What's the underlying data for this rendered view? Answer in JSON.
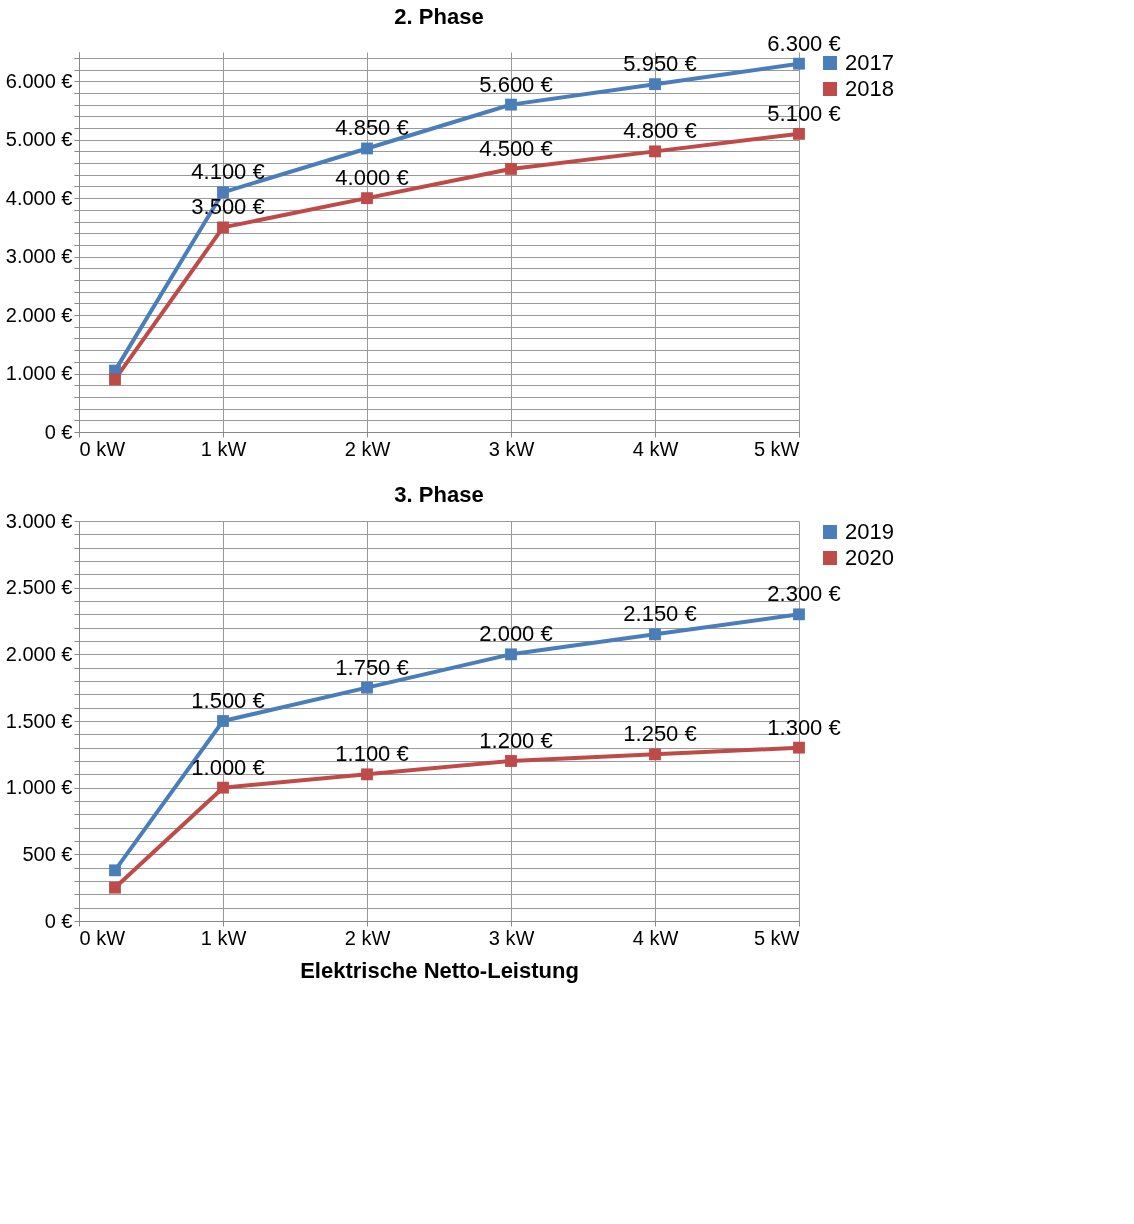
{
  "chart_data": [
    {
      "type": "line",
      "title": "2. Phase",
      "x": [
        0.25,
        1,
        2,
        3,
        4,
        5
      ],
      "series": [
        {
          "name": "2017",
          "color": "#4a7ebb",
          "values": [
            1050,
            4100,
            4850,
            5600,
            5950,
            6300
          ],
          "value_labels": [
            null,
            "4.100 €",
            "4.850 €",
            "5.600 €",
            "5.950 €",
            "6.300 €"
          ]
        },
        {
          "name": "2018",
          "color": "#be4b48",
          "values": [
            900,
            3500,
            4000,
            4500,
            4800,
            5100
          ],
          "value_labels": [
            null,
            "3.500 €",
            "4.000 €",
            "4.500 €",
            "4.800 €",
            "5.100 €"
          ]
        }
      ],
      "xlim": [
        0,
        5
      ],
      "xticks": [
        {
          "value": 0,
          "label": "0 kW"
        },
        {
          "value": 1,
          "label": "1 kW"
        },
        {
          "value": 2,
          "label": "2 kW"
        },
        {
          "value": 3,
          "label": "3 kW"
        },
        {
          "value": 4,
          "label": "4 kW"
        },
        {
          "value": 5,
          "label": "5 kW"
        }
      ],
      "ylim": [
        0,
        6500
      ],
      "yticks": [
        {
          "value": 0,
          "label": "0 €"
        },
        {
          "value": 200,
          "label": null
        },
        {
          "value": 400,
          "label": null
        },
        {
          "value": 600,
          "label": null
        },
        {
          "value": 800,
          "label": null
        },
        {
          "value": 1000,
          "label": "1.000 €"
        },
        {
          "value": 1200,
          "label": null
        },
        {
          "value": 1400,
          "label": null
        },
        {
          "value": 1600,
          "label": null
        },
        {
          "value": 1800,
          "label": null
        },
        {
          "value": 2000,
          "label": "2.000 €"
        },
        {
          "value": 2200,
          "label": null
        },
        {
          "value": 2400,
          "label": null
        },
        {
          "value": 2600,
          "label": null
        },
        {
          "value": 2800,
          "label": null
        },
        {
          "value": 3000,
          "label": "3.000 €"
        },
        {
          "value": 3200,
          "label": null
        },
        {
          "value": 3400,
          "label": null
        },
        {
          "value": 3600,
          "label": null
        },
        {
          "value": 3800,
          "label": null
        },
        {
          "value": 4000,
          "label": "4.000 €"
        },
        {
          "value": 4200,
          "label": null
        },
        {
          "value": 4400,
          "label": null
        },
        {
          "value": 4600,
          "label": null
        },
        {
          "value": 4800,
          "label": null
        },
        {
          "value": 5000,
          "label": "5.000 €"
        },
        {
          "value": 5200,
          "label": null
        },
        {
          "value": 5400,
          "label": null
        },
        {
          "value": 5600,
          "label": null
        },
        {
          "value": 5800,
          "label": null
        },
        {
          "value": 6000,
          "label": "6.000 €"
        },
        {
          "value": 6200,
          "label": null
        },
        {
          "value": 6400,
          "label": null
        }
      ],
      "grid": true,
      "legend": "right",
      "marker": "square",
      "line_style": "solid"
    },
    {
      "type": "line",
      "title": "3. Phase",
      "xlabel": "Elektrische  Netto-Leistung",
      "x": [
        0.25,
        1,
        2,
        3,
        4,
        5
      ],
      "series": [
        {
          "name": "2019",
          "color": "#4a7ebb",
          "values": [
            380,
            1500,
            1750,
            2000,
            2150,
            2300
          ],
          "value_labels": [
            null,
            "1.500 €",
            "1.750 €",
            "2.000 €",
            "2.150 €",
            "2.300 €"
          ]
        },
        {
          "name": "2020",
          "color": "#be4b48",
          "values": [
            250,
            1000,
            1100,
            1200,
            1250,
            1300
          ],
          "value_labels": [
            null,
            "1.000 €",
            "1.100 €",
            "1.200 €",
            "1.250 €",
            "1.300 €"
          ]
        }
      ],
      "xlim": [
        0,
        5
      ],
      "xticks": [
        {
          "value": 0,
          "label": "0 kW"
        },
        {
          "value": 1,
          "label": "1 kW"
        },
        {
          "value": 2,
          "label": "2 kW"
        },
        {
          "value": 3,
          "label": "3 kW"
        },
        {
          "value": 4,
          "label": "4 kW"
        },
        {
          "value": 5,
          "label": "5 kW"
        }
      ],
      "ylim": [
        0,
        3000
      ],
      "yticks": [
        {
          "value": 0,
          "label": "0 €"
        },
        {
          "value": 100,
          "label": null
        },
        {
          "value": 200,
          "label": null
        },
        {
          "value": 300,
          "label": null
        },
        {
          "value": 400,
          "label": null
        },
        {
          "value": 500,
          "label": "500 €"
        },
        {
          "value": 600,
          "label": null
        },
        {
          "value": 700,
          "label": null
        },
        {
          "value": 800,
          "label": null
        },
        {
          "value": 900,
          "label": null
        },
        {
          "value": 1000,
          "label": "1.000 €"
        },
        {
          "value": 1100,
          "label": null
        },
        {
          "value": 1200,
          "label": null
        },
        {
          "value": 1300,
          "label": null
        },
        {
          "value": 1400,
          "label": null
        },
        {
          "value": 1500,
          "label": "1.500 €"
        },
        {
          "value": 1600,
          "label": null
        },
        {
          "value": 1700,
          "label": null
        },
        {
          "value": 1800,
          "label": null
        },
        {
          "value": 1900,
          "label": null
        },
        {
          "value": 2000,
          "label": "2.000 €"
        },
        {
          "value": 2100,
          "label": null
        },
        {
          "value": 2200,
          "label": null
        },
        {
          "value": 2300,
          "label": null
        },
        {
          "value": 2400,
          "label": null
        },
        {
          "value": 2500,
          "label": "2.500 €"
        },
        {
          "value": 2600,
          "label": null
        },
        {
          "value": 2700,
          "label": null
        },
        {
          "value": 2800,
          "label": null
        },
        {
          "value": 2900,
          "label": null
        },
        {
          "value": 3000,
          "label": "3.000 €"
        }
      ],
      "grid": true,
      "legend": "right",
      "marker": "square",
      "line_style": "solid"
    }
  ]
}
